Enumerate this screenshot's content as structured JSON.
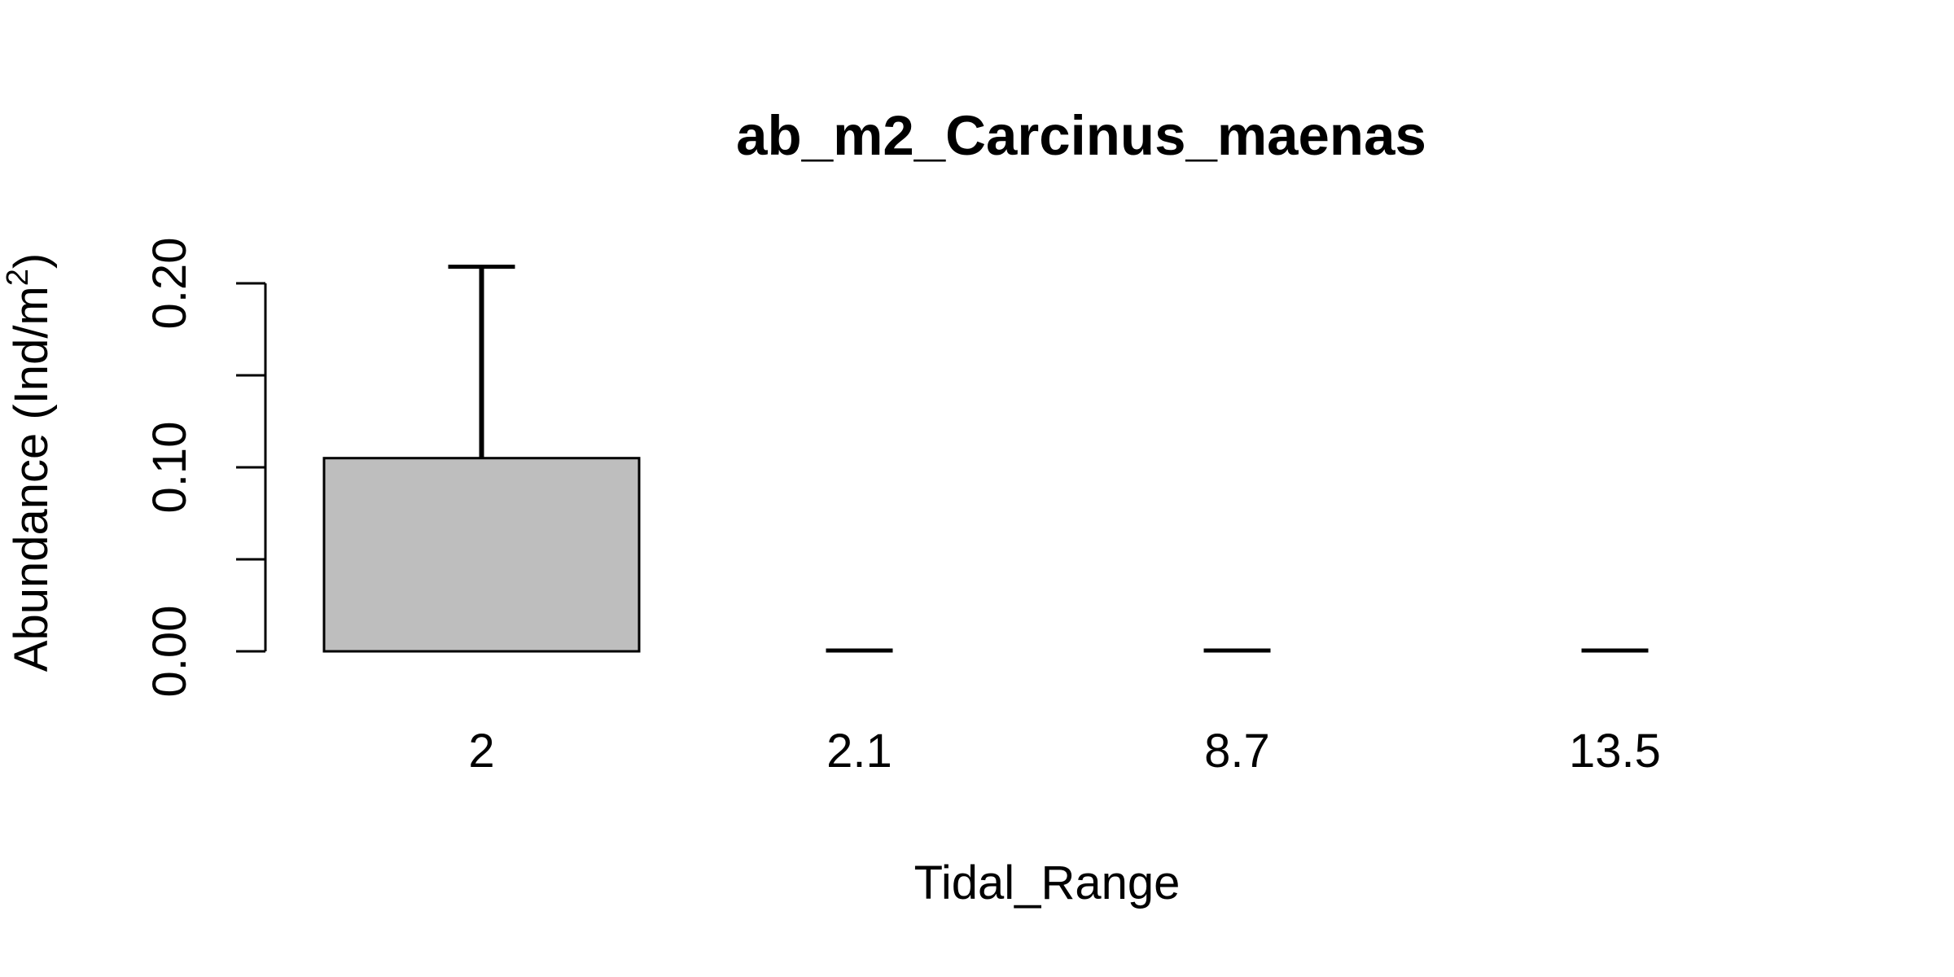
{
  "chart_data": {
    "type": "bar",
    "title": "ab_m2_Carcinus_maenas",
    "xlabel": "Tidal_Range",
    "ylabel": {
      "main": "Abundance (Ind/m",
      "superscript": "2",
      "close": ")"
    },
    "categories": [
      "2",
      "2.1",
      "8.7",
      "13.5"
    ],
    "values": [
      0.105,
      0.0,
      0.0,
      0.0
    ],
    "error_upper": [
      0.209,
      0.0,
      0.0,
      0.0
    ],
    "ylim": [
      0,
      0.22
    ],
    "y_ticks": [
      0.0,
      0.05,
      0.1,
      0.15,
      0.2
    ],
    "y_tick_labels": [
      "0.00",
      "",
      "0.10",
      "",
      "0.20"
    ],
    "bar_color": "#bebebe",
    "grid": false,
    "legend": "none"
  }
}
